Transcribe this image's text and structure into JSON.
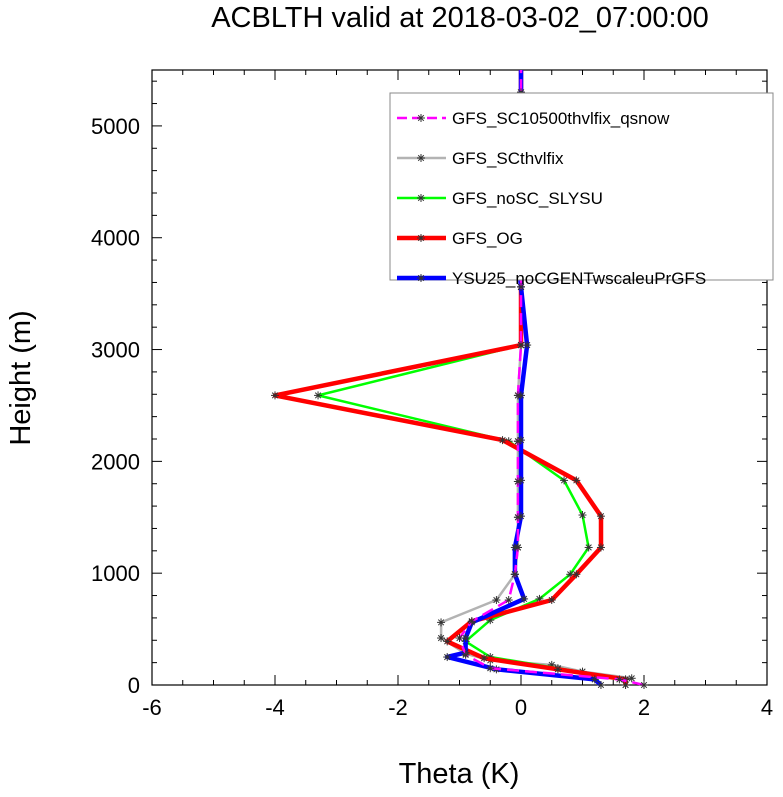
{
  "chart_data": {
    "type": "line",
    "title": "ACBLTH valid at 2018-03-02_07:00:00",
    "xlabel": "Theta (K)",
    "ylabel": "Height (m)",
    "xlim": [
      -6,
      4
    ],
    "ylim": [
      0,
      5500
    ],
    "xticks": [
      "-6",
      "-4",
      "-2",
      "0",
      "2",
      "4"
    ],
    "yticks": [
      "0",
      "1000",
      "2000",
      "3000",
      "4000",
      "5000"
    ],
    "legend_position": "top-right",
    "series": [
      {
        "name": "GFS_SC10500thvlfix_qsnow",
        "color": "#ff00ff",
        "dash": "dashed",
        "points": [
          [
            2.0,
            0
          ],
          [
            1.6,
            50
          ],
          [
            -0.5,
            150
          ],
          [
            -0.9,
            270
          ],
          [
            -1.0,
            420
          ],
          [
            -0.8,
            570
          ],
          [
            -0.2,
            760
          ],
          [
            -0.1,
            990
          ],
          [
            -0.05,
            1230
          ],
          [
            -0.05,
            1500
          ],
          [
            -0.05,
            1820
          ],
          [
            -0.05,
            2180
          ],
          [
            -0.05,
            2590
          ],
          [
            0.0,
            3040
          ],
          [
            0.0,
            3560
          ],
          [
            0.0,
            4140
          ],
          [
            0.0,
            4700
          ],
          [
            0.0,
            5300
          ],
          [
            0.0,
            5500
          ]
        ]
      },
      {
        "name": "GFS_SCthvlfix",
        "color": "#b3b3b3",
        "dash": "solid",
        "points": [
          [
            1.8,
            60
          ],
          [
            1.0,
            120
          ],
          [
            0.5,
            180
          ],
          [
            -0.5,
            220
          ],
          [
            -0.9,
            280
          ],
          [
            -1.3,
            420
          ],
          [
            -1.3,
            560
          ],
          [
            -0.4,
            760
          ],
          [
            -0.1,
            990
          ],
          [
            -0.05,
            1230
          ],
          [
            -0.05,
            1500
          ],
          [
            -0.05,
            1820
          ],
          [
            -0.05,
            2180
          ],
          [
            -0.05,
            2590
          ],
          [
            0.0,
            3040
          ],
          [
            0.0,
            3560
          ],
          [
            -0.1,
            4140
          ],
          [
            0.0,
            4700
          ],
          [
            0.0,
            5300
          ],
          [
            0.0,
            5500
          ]
        ]
      },
      {
        "name": "GFS_noSC_SLYSU",
        "color": "#00ff00",
        "dash": "solid",
        "points": [
          [
            1.7,
            0
          ],
          [
            1.7,
            50
          ],
          [
            0.6,
            150
          ],
          [
            -0.5,
            250
          ],
          [
            -0.9,
            390
          ],
          [
            -0.5,
            580
          ],
          [
            0.3,
            770
          ],
          [
            0.8,
            990
          ],
          [
            1.1,
            1230
          ],
          [
            1.0,
            1520
          ],
          [
            0.7,
            1830
          ],
          [
            -0.2,
            2180
          ],
          [
            -3.3,
            2590
          ],
          [
            0.0,
            3040
          ],
          [
            0.0,
            3560
          ],
          [
            0.0,
            4140
          ],
          [
            0.0,
            4700
          ],
          [
            0.0,
            5300
          ],
          [
            0.0,
            5500
          ]
        ]
      },
      {
        "name": "GFS_OG",
        "color": "#ff0000",
        "dash": "solid",
        "points": [
          [
            1.7,
            0
          ],
          [
            1.7,
            50
          ],
          [
            0.6,
            140
          ],
          [
            -0.6,
            240
          ],
          [
            -1.2,
            390
          ],
          [
            -0.8,
            570
          ],
          [
            0.5,
            760
          ],
          [
            0.9,
            990
          ],
          [
            1.3,
            1230
          ],
          [
            1.3,
            1510
          ],
          [
            0.9,
            1830
          ],
          [
            -0.3,
            2190
          ],
          [
            -4.0,
            2590
          ],
          [
            0.0,
            3040
          ],
          [
            0.0,
            3560
          ],
          [
            0.0,
            4140
          ],
          [
            0.0,
            4700
          ],
          [
            0.0,
            5300
          ],
          [
            0.0,
            5500
          ]
        ]
      },
      {
        "name": "YSU25_noCGENTwscaleuPrGFS",
        "color": "#0000ff",
        "dash": "solid",
        "points": [
          [
            1.3,
            0
          ],
          [
            1.2,
            50
          ],
          [
            -0.4,
            140
          ],
          [
            -1.2,
            250
          ],
          [
            -0.9,
            290
          ],
          [
            -0.9,
            420
          ],
          [
            -0.8,
            560
          ],
          [
            0.05,
            770
          ],
          [
            -0.1,
            990
          ],
          [
            -0.1,
            1230
          ],
          [
            0.0,
            1510
          ],
          [
            0.0,
            1830
          ],
          [
            0.0,
            2190
          ],
          [
            0.0,
            2590
          ],
          [
            0.1,
            3040
          ],
          [
            0.0,
            3560
          ],
          [
            -0.1,
            4140
          ],
          [
            -0.1,
            4700
          ],
          [
            0.0,
            5300
          ],
          [
            0.0,
            5500
          ]
        ]
      }
    ]
  }
}
